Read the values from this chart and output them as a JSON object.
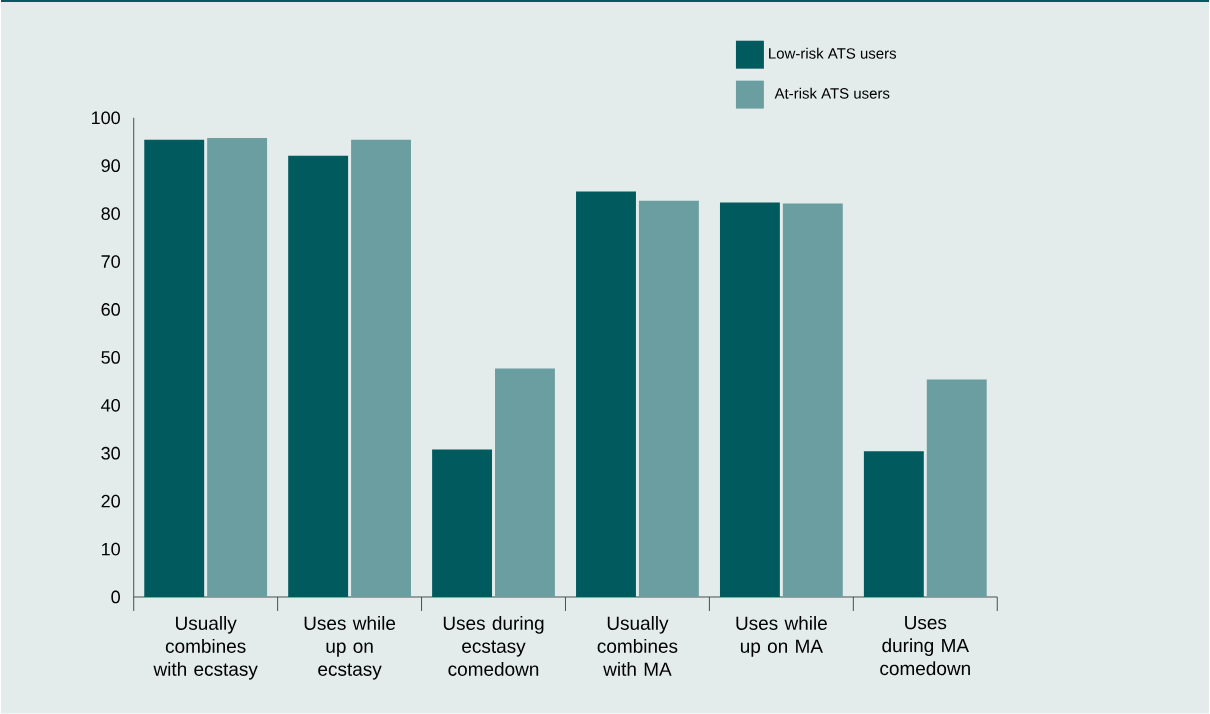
{
  "chart_data": {
    "type": "bar",
    "categories": [
      "Usually combines with ecstasy",
      "Uses while up on ecstasy",
      "Uses during ecstasy comedown",
      "Usually combines with MA",
      "Uses while up on MA",
      "Uses during MA comedown"
    ],
    "series": [
      {
        "name": "Low-risk ATS users",
        "color": "#005a5e",
        "values": [
          95.4,
          92.1,
          30.8,
          84.6,
          82.3,
          30.4
        ]
      },
      {
        "name": "At-risk ATS users",
        "color": "#6a9ea0",
        "values": [
          95.8,
          95.4,
          47.7,
          82.7,
          82.1,
          45.4
        ]
      }
    ],
    "ylim": [
      0,
      100
    ],
    "yticks": [
      0,
      10,
      20,
      30,
      40,
      50,
      60,
      70,
      80,
      90,
      100
    ],
    "grid": false,
    "legend": "top right"
  }
}
